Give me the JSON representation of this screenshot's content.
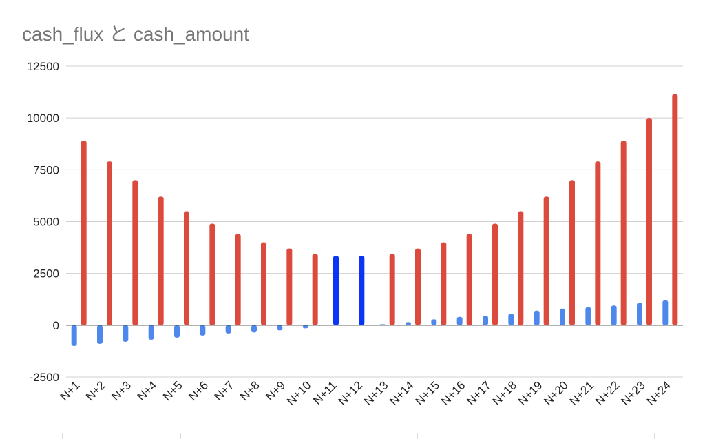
{
  "chart_data": {
    "type": "bar",
    "title": "cash_flux と cash_amount",
    "xlabel": "",
    "ylabel": "",
    "ylim": [
      -2500,
      12500
    ],
    "y_ticks": [
      -2500,
      0,
      2500,
      5000,
      7500,
      10000,
      12500
    ],
    "grid": true,
    "legend": "none",
    "categories": [
      "N+1",
      "N+2",
      "N+3",
      "N+4",
      "N+5",
      "N+6",
      "N+7",
      "N+8",
      "N+9",
      "N+10",
      "N+11",
      "N+12",
      "N+13",
      "N+14",
      "N+15",
      "N+16",
      "N+17",
      "N+18",
      "N+19",
      "N+20",
      "N+21",
      "N+22",
      "N+23",
      "N+24"
    ],
    "series": [
      {
        "name": "cash_flux",
        "color": "#4f88ec",
        "highlight_color": "#0a35f5",
        "highlight_indices": [
          10,
          11
        ],
        "values": [
          -1000,
          -900,
          -800,
          -700,
          -600,
          -500,
          -400,
          -350,
          -250,
          -150,
          3350,
          3350,
          50,
          150,
          280,
          400,
          450,
          550,
          700,
          800,
          870,
          950,
          1080,
          1200
        ]
      },
      {
        "name": "cash_amount",
        "color": "#db4a3c",
        "values": [
          8900,
          7900,
          7000,
          6200,
          5500,
          4900,
          4400,
          4000,
          3700,
          3450,
          null,
          null,
          3450,
          3700,
          4000,
          4400,
          4900,
          5500,
          6200,
          7000,
          7900,
          8900,
          10000,
          11150
        ]
      }
    ]
  }
}
